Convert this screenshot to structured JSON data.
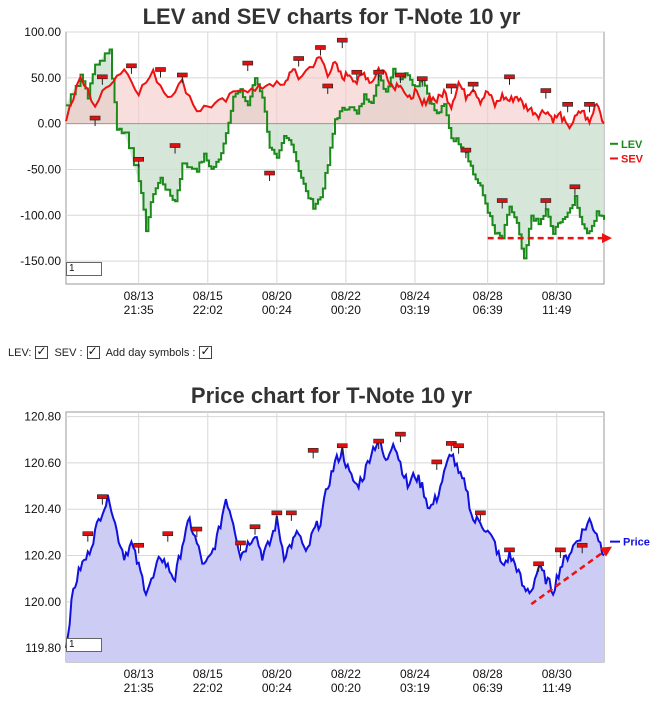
{
  "toggles": {
    "lev_label": "LEV:",
    "sev_label": "SEV :",
    "day_symbols_label": "Add day symbols :",
    "lev_checked": true,
    "sev_checked": true,
    "day_symbols_checked": true
  },
  "colors": {
    "lev": "#1a8a1a",
    "sev": "#ee1111",
    "price": "#1010e0",
    "lev_fill": "#cfe3d2",
    "sev_fill": "#f5c8c8",
    "price_fill": "#ccccf4",
    "trend": "#ee1111",
    "marker": "#dd1111"
  },
  "chart_data": [
    {
      "type": "line",
      "title": "LEV and SEV charts for T-Note 10 yr",
      "x_ticks": [
        [
          "08/13",
          "21:35"
        ],
        [
          "08/15",
          "22:02"
        ],
        [
          "08/20",
          "00:24"
        ],
        [
          "08/22",
          "00:20"
        ],
        [
          "08/24",
          "03:19"
        ],
        [
          "08/28",
          "06:39"
        ],
        [
          "08/30",
          "11:49"
        ]
      ],
      "y_ticks": [
        "100.00",
        "50.00",
        "0.00",
        "-50.00",
        "-100.00",
        "-150.00"
      ],
      "y_tick_values": [
        100,
        50,
        0,
        -50,
        -100,
        -150
      ],
      "ylim": [
        -175,
        100
      ],
      "legend_placement": "right",
      "zoom_value": "1",
      "series": [
        {
          "name": "LEV",
          "values": [
            [
              0,
              20
            ],
            [
              2,
              55
            ],
            [
              3,
              30
            ],
            [
              4,
              65
            ],
            [
              6,
              80
            ],
            [
              7,
              -5
            ],
            [
              8,
              -10
            ],
            [
              10,
              -60
            ],
            [
              11,
              -115
            ],
            [
              12,
              -75
            ],
            [
              13,
              -60
            ],
            [
              14,
              -75
            ],
            [
              15,
              -85
            ],
            [
              16,
              -45
            ],
            [
              18,
              -50
            ],
            [
              19,
              -35
            ],
            [
              20,
              -50
            ],
            [
              21,
              -40
            ],
            [
              22,
              -10
            ],
            [
              23,
              30
            ],
            [
              24,
              35
            ],
            [
              25,
              20
            ],
            [
              26,
              50
            ],
            [
              27,
              30
            ],
            [
              28,
              -25
            ],
            [
              29,
              -40
            ],
            [
              30,
              -15
            ],
            [
              31,
              -20
            ],
            [
              32,
              -50
            ],
            [
              33,
              -75
            ],
            [
              34,
              -90
            ],
            [
              35,
              -80
            ],
            [
              36,
              -45
            ],
            [
              37,
              5
            ],
            [
              38,
              15
            ],
            [
              39,
              20
            ],
            [
              40,
              10
            ],
            [
              41,
              30
            ],
            [
              42,
              25
            ],
            [
              43,
              50
            ],
            [
              44,
              35
            ],
            [
              45,
              60
            ],
            [
              46,
              50
            ],
            [
              47,
              55
            ],
            [
              48,
              40
            ],
            [
              49,
              50
            ],
            [
              50,
              25
            ],
            [
              51,
              10
            ],
            [
              52,
              20
            ],
            [
              53,
              -15
            ],
            [
              54,
              -20
            ],
            [
              55,
              -30
            ],
            [
              56,
              -55
            ],
            [
              57,
              -70
            ],
            [
              58,
              -95
            ],
            [
              59,
              -120
            ],
            [
              60,
              -125
            ],
            [
              61,
              -90
            ],
            [
              62,
              -110
            ],
            [
              63,
              -150
            ],
            [
              64,
              -100
            ],
            [
              65,
              -110
            ],
            [
              66,
              -95
            ],
            [
              67,
              -120
            ],
            [
              68,
              -105
            ],
            [
              69,
              -100
            ],
            [
              70,
              -80
            ],
            [
              71,
              -110
            ],
            [
              72,
              -120
            ],
            [
              73,
              -95
            ],
            [
              74,
              -105
            ]
          ]
        },
        {
          "name": "SEV",
          "values": [
            [
              0,
              5
            ],
            [
              2,
              50
            ],
            [
              4,
              20
            ],
            [
              6,
              45
            ],
            [
              8,
              60
            ],
            [
              10,
              35
            ],
            [
              12,
              55
            ],
            [
              14,
              30
            ],
            [
              16,
              45
            ],
            [
              18,
              15
            ],
            [
              20,
              20
            ],
            [
              22,
              25
            ],
            [
              24,
              40
            ],
            [
              26,
              35
            ],
            [
              28,
              45
            ],
            [
              30,
              40
            ],
            [
              31,
              60
            ],
            [
              32,
              50
            ],
            [
              34,
              65
            ],
            [
              35,
              72
            ],
            [
              36,
              55
            ],
            [
              37,
              65
            ],
            [
              38,
              50
            ],
            [
              39,
              55
            ],
            [
              40,
              45
            ],
            [
              41,
              55
            ],
            [
              42,
              45
            ],
            [
              43,
              60
            ],
            [
              44,
              55
            ],
            [
              45,
              40
            ],
            [
              46,
              45
            ],
            [
              47,
              25
            ],
            [
              48,
              35
            ],
            [
              49,
              20
            ],
            [
              50,
              30
            ],
            [
              51,
              25
            ],
            [
              52,
              35
            ],
            [
              53,
              20
            ],
            [
              54,
              45
            ],
            [
              55,
              30
            ],
            [
              56,
              40
            ],
            [
              57,
              25
            ],
            [
              58,
              35
            ],
            [
              59,
              20
            ],
            [
              60,
              30
            ],
            [
              61,
              25
            ],
            [
              62,
              30
            ],
            [
              63,
              20
            ],
            [
              64,
              15
            ],
            [
              65,
              10
            ],
            [
              66,
              15
            ],
            [
              67,
              5
            ],
            [
              68,
              10
            ],
            [
              69,
              -5
            ],
            [
              70,
              5
            ],
            [
              71,
              15
            ],
            [
              72,
              0
            ],
            [
              73,
              25
            ],
            [
              74,
              0
            ]
          ]
        }
      ]
    },
    {
      "type": "area",
      "title": "Price chart for T-Note 10 yr",
      "x_ticks": [
        [
          "08/13",
          "21:35"
        ],
        [
          "08/15",
          "22:02"
        ],
        [
          "08/20",
          "00:24"
        ],
        [
          "08/22",
          "00:20"
        ],
        [
          "08/24",
          "03:19"
        ],
        [
          "08/28",
          "06:39"
        ],
        [
          "08/30",
          "11:49"
        ]
      ],
      "y_ticks": [
        "120.80",
        "120.60",
        "120.40",
        "120.20",
        "120.00",
        "119.80"
      ],
      "y_tick_values": [
        120.8,
        120.6,
        120.4,
        120.2,
        120.0,
        119.8
      ],
      "ylim": [
        119.74,
        120.82
      ],
      "legend_placement": "right",
      "zoom_value": "1",
      "series": [
        {
          "name": "Price",
          "values": [
            [
              0,
              119.8
            ],
            [
              1,
              120.05
            ],
            [
              2,
              120.15
            ],
            [
              3,
              120.2
            ],
            [
              4,
              120.3
            ],
            [
              5,
              120.4
            ],
            [
              6,
              120.45
            ],
            [
              7,
              120.3
            ],
            [
              8,
              120.2
            ],
            [
              9,
              120.25
            ],
            [
              10,
              120.15
            ],
            [
              11,
              120.05
            ],
            [
              12,
              120.1
            ],
            [
              13,
              120.2
            ],
            [
              14,
              120.15
            ],
            [
              15,
              120.1
            ],
            [
              16,
              120.25
            ],
            [
              17,
              120.35
            ],
            [
              18,
              120.25
            ],
            [
              19,
              120.15
            ],
            [
              20,
              120.2
            ],
            [
              21,
              120.3
            ],
            [
              22,
              120.45
            ],
            [
              23,
              120.35
            ],
            [
              24,
              120.2
            ],
            [
              25,
              120.25
            ],
            [
              26,
              120.3
            ],
            [
              27,
              120.2
            ],
            [
              28,
              120.25
            ],
            [
              29,
              120.35
            ],
            [
              30,
              120.2
            ],
            [
              31,
              120.25
            ],
            [
              32,
              120.3
            ],
            [
              33,
              120.2
            ],
            [
              34,
              120.3
            ],
            [
              35,
              120.35
            ],
            [
              36,
              120.5
            ],
            [
              37,
              120.6
            ],
            [
              38,
              120.65
            ],
            [
              39,
              120.55
            ],
            [
              40,
              120.5
            ],
            [
              41,
              120.55
            ],
            [
              42,
              120.65
            ],
            [
              43,
              120.7
            ],
            [
              44,
              120.6
            ],
            [
              45,
              120.7
            ],
            [
              46,
              120.6
            ],
            [
              47,
              120.5
            ],
            [
              48,
              120.55
            ],
            [
              49,
              120.5
            ],
            [
              50,
              120.4
            ],
            [
              51,
              120.45
            ],
            [
              52,
              120.55
            ],
            [
              53,
              120.65
            ],
            [
              54,
              120.55
            ],
            [
              55,
              120.5
            ],
            [
              56,
              120.35
            ],
            [
              57,
              120.35
            ],
            [
              58,
              120.3
            ],
            [
              59,
              120.25
            ],
            [
              60,
              120.15
            ],
            [
              61,
              120.2
            ],
            [
              62,
              120.15
            ],
            [
              63,
              120.05
            ],
            [
              64,
              120.05
            ],
            [
              65,
              120.15
            ],
            [
              66,
              120.1
            ],
            [
              67,
              120.05
            ],
            [
              68,
              120.15
            ],
            [
              69,
              120.2
            ],
            [
              70,
              120.25
            ],
            [
              71,
              120.3
            ],
            [
              72,
              120.35
            ],
            [
              73,
              120.3
            ],
            [
              74,
              120.2
            ]
          ]
        }
      ]
    }
  ]
}
